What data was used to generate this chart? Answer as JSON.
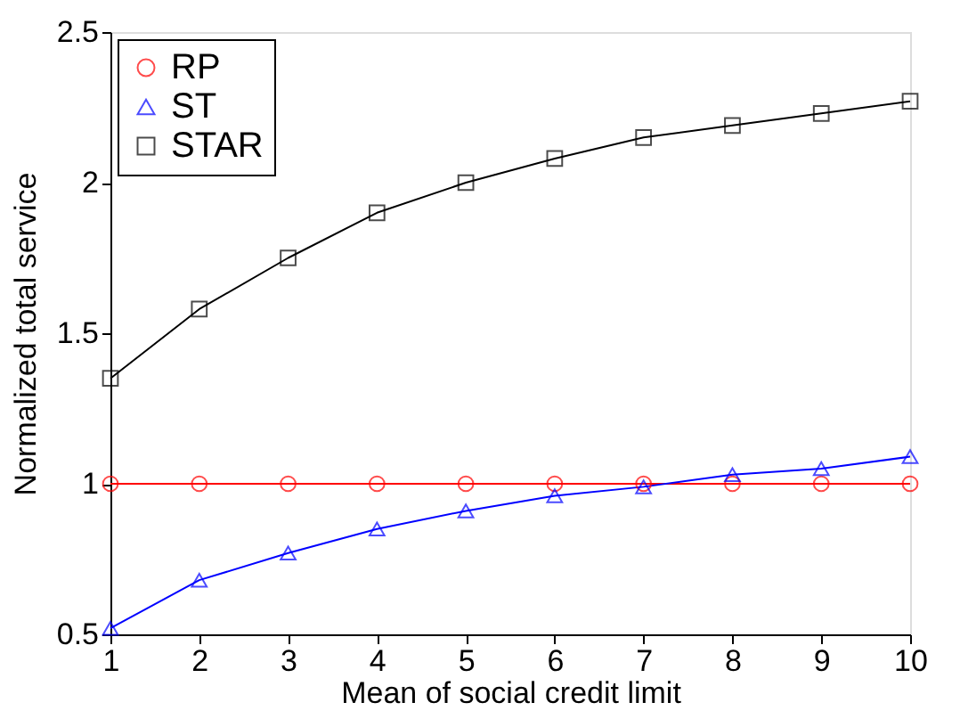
{
  "chart_data": {
    "type": "line",
    "xlabel": "Mean of social credit limit",
    "ylabel": "Normalized total service",
    "x": [
      1,
      2,
      3,
      4,
      5,
      6,
      7,
      8,
      9,
      10
    ],
    "series": [
      {
        "name": "RP",
        "color": "#ff0000",
        "marker": "circle",
        "values": [
          1,
          1,
          1,
          1,
          1,
          1,
          1,
          1,
          1,
          1
        ]
      },
      {
        "name": "ST",
        "color": "#0000ff",
        "marker": "triangle",
        "values": [
          0.52,
          0.68,
          0.77,
          0.85,
          0.91,
          0.96,
          0.99,
          1.03,
          1.05,
          1.09
        ]
      },
      {
        "name": "STAR",
        "color": "#000000",
        "marker": "square",
        "values": [
          1.35,
          1.58,
          1.75,
          1.9,
          2.0,
          2.08,
          2.15,
          2.19,
          2.23,
          2.27
        ]
      }
    ],
    "xlim": [
      1,
      10
    ],
    "xticks": [
      1,
      2,
      3,
      4,
      5,
      6,
      7,
      8,
      9,
      10
    ],
    "ylim": [
      0.5,
      2.5
    ],
    "yticks": [
      0.5,
      1,
      1.5,
      2,
      2.5
    ],
    "grid": false,
    "legend": "top left",
    "line_style": "solid"
  }
}
